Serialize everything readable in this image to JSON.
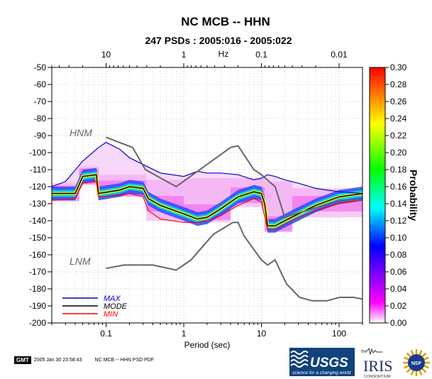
{
  "header": {
    "title": "NC MCB -- HHN",
    "subtitle": "247 PSDs : 2005:016 - 2005:022"
  },
  "footer": {
    "gmt_badge": "GMT",
    "timestamp": "2005 Jan 30 23:58:43",
    "file_label": "NC MCB -- HHN PSD PDF"
  },
  "logos": {
    "usgs": "USGS",
    "usgs_tagline": "science for a changing world",
    "iris_small": "the",
    "iris": "IRIS",
    "iris_sub": "CONSORTIUM",
    "nsf": "NSF"
  },
  "chart_data": {
    "type": "heatmap",
    "title": "NC MCB -- HHN",
    "subtitle": "247 PSDs : 2005:016 - 2005:022",
    "xlabel": "Period (sec)",
    "x_scale": "log",
    "xlim": [
      0.02,
      200
    ],
    "x_ticks": [
      0.1,
      1,
      10,
      100
    ],
    "top_axis_label": "Hz",
    "top_ticks": [
      10,
      1,
      0.1,
      0.01
    ],
    "ylim": [
      -200,
      -50
    ],
    "y_ticks": [
      -50,
      -60,
      -70,
      -80,
      -90,
      -100,
      -110,
      -120,
      -130,
      -140,
      -150,
      -160,
      -170,
      -180,
      -190,
      -200
    ],
    "colorbar": {
      "label": "Probability",
      "range": [
        0,
        0.3
      ],
      "ticks": [
        "0.00",
        "0.02",
        "0.04",
        "0.06",
        "0.08",
        "0.10",
        "0.12",
        "0.14",
        "0.16",
        "0.18",
        "0.20",
        "0.22",
        "0.24",
        "0.26",
        "0.28",
        "0.30"
      ],
      "colors": [
        "#ffffff",
        "#ff00ff",
        "#0000ff",
        "#00ffff",
        "#00ff00",
        "#ffff00",
        "#ff0000"
      ]
    },
    "legend": {
      "placement": "bottom-left",
      "entries": [
        {
          "label": "MAX",
          "color": "#0000cc"
        },
        {
          "label": "MODE",
          "color": "#000000"
        },
        {
          "label": "MIN",
          "color": "#ff0000"
        }
      ]
    },
    "model_labels": [
      "HNM",
      "LNM"
    ],
    "model_color": "#666666",
    "series": [
      {
        "key": "max",
        "color": "#0000cc",
        "points": [
          [
            0.02,
            -120
          ],
          [
            0.03,
            -117
          ],
          [
            0.05,
            -105
          ],
          [
            0.08,
            -97
          ],
          [
            0.1,
            -94
          ],
          [
            0.15,
            -98
          ],
          [
            0.2,
            -103
          ],
          [
            0.3,
            -107
          ],
          [
            0.5,
            -112
          ],
          [
            1,
            -114
          ],
          [
            1.5,
            -111
          ],
          [
            2,
            -112
          ],
          [
            3,
            -112
          ],
          [
            5,
            -113
          ],
          [
            8,
            -116
          ],
          [
            10,
            -115
          ],
          [
            12,
            -113
          ],
          [
            15,
            -114
          ],
          [
            20,
            -116
          ],
          [
            30,
            -118
          ],
          [
            50,
            -121
          ],
          [
            100,
            -123
          ],
          [
            200,
            -124
          ]
        ]
      },
      {
        "key": "mode",
        "color": "#000000",
        "points": [
          [
            0.02,
            -124
          ],
          [
            0.04,
            -124
          ],
          [
            0.05,
            -114
          ],
          [
            0.075,
            -113
          ],
          [
            0.08,
            -124
          ],
          [
            0.15,
            -122
          ],
          [
            0.2,
            -120
          ],
          [
            0.3,
            -121
          ],
          [
            0.35,
            -127
          ],
          [
            0.5,
            -131
          ],
          [
            1,
            -136
          ],
          [
            1.5,
            -139
          ],
          [
            2,
            -138
          ],
          [
            3,
            -133
          ],
          [
            5,
            -126
          ],
          [
            8,
            -123
          ],
          [
            10,
            -124
          ],
          [
            11,
            -130
          ],
          [
            12,
            -143
          ],
          [
            15,
            -143
          ],
          [
            20,
            -140
          ],
          [
            30,
            -136
          ],
          [
            50,
            -131
          ],
          [
            100,
            -126
          ],
          [
            200,
            -124
          ]
        ]
      },
      {
        "key": "min",
        "color": "#ff0000",
        "points": [
          [
            0.02,
            -128
          ],
          [
            0.04,
            -127
          ],
          [
            0.05,
            -118
          ],
          [
            0.075,
            -117
          ],
          [
            0.08,
            -126
          ],
          [
            0.15,
            -125
          ],
          [
            0.2,
            -124
          ],
          [
            0.3,
            -126
          ],
          [
            0.35,
            -134
          ],
          [
            0.5,
            -139
          ],
          [
            1,
            -141
          ],
          [
            1.5,
            -141
          ],
          [
            2,
            -140
          ],
          [
            3,
            -137
          ],
          [
            5,
            -131
          ],
          [
            8,
            -127
          ],
          [
            10,
            -129
          ],
          [
            12,
            -145
          ],
          [
            15,
            -145
          ],
          [
            20,
            -142
          ],
          [
            30,
            -138
          ],
          [
            50,
            -134
          ],
          [
            100,
            -130
          ],
          [
            200,
            -128
          ]
        ]
      },
      {
        "key": "hnm",
        "color": "#666666",
        "points": [
          [
            0.1,
            -91
          ],
          [
            0.22,
            -97
          ],
          [
            0.32,
            -110
          ],
          [
            0.8,
            -120
          ],
          [
            4,
            -97
          ],
          [
            5,
            -96
          ],
          [
            8,
            -110
          ],
          [
            10,
            -113
          ],
          [
            15,
            -120
          ],
          [
            20,
            -138
          ],
          [
            100,
            -128
          ],
          [
            200,
            -128
          ]
        ]
      },
      {
        "key": "lnm",
        "color": "#666666",
        "points": [
          [
            0.1,
            -168
          ],
          [
            0.17,
            -166
          ],
          [
            0.4,
            -166
          ],
          [
            0.8,
            -169
          ],
          [
            1.24,
            -163
          ],
          [
            2.4,
            -148
          ],
          [
            4.3,
            -141
          ],
          [
            5,
            -141
          ],
          [
            6,
            -149
          ],
          [
            10,
            -163
          ],
          [
            12,
            -166
          ],
          [
            15,
            -163
          ],
          [
            21,
            -177
          ],
          [
            31,
            -185
          ],
          [
            45,
            -187
          ],
          [
            70,
            -187
          ],
          [
            101,
            -185
          ],
          [
            154,
            -185
          ],
          [
            200,
            -186
          ]
        ]
      }
    ],
    "density": {
      "description_free": true,
      "segments": [
        {
          "x": [
            0.02,
            0.045
          ],
          "mode": -124,
          "band": [
            -128,
            -118
          ]
        },
        {
          "x": [
            0.045,
            0.08
          ],
          "mode": -114,
          "band": [
            -119,
            -108
          ]
        },
        {
          "x": [
            0.08,
            0.33
          ],
          "mode": -121,
          "band": [
            -126,
            -113
          ]
        },
        {
          "x": [
            0.33,
            1.0
          ],
          "mode": -130,
          "band": [
            -140,
            -116
          ]
        },
        {
          "x": [
            1.0,
            4.0
          ],
          "mode": -135,
          "band": [
            -141,
            -115
          ]
        },
        {
          "x": [
            4.0,
            11.0
          ],
          "mode": -125,
          "band": [
            -132,
            -115
          ]
        },
        {
          "x": [
            11.0,
            25.0
          ],
          "mode": -142,
          "band": [
            -146,
            -117
          ]
        },
        {
          "x": [
            25.0,
            200
          ],
          "mode": -130,
          "band": [
            -138,
            -121
          ]
        }
      ]
    }
  }
}
